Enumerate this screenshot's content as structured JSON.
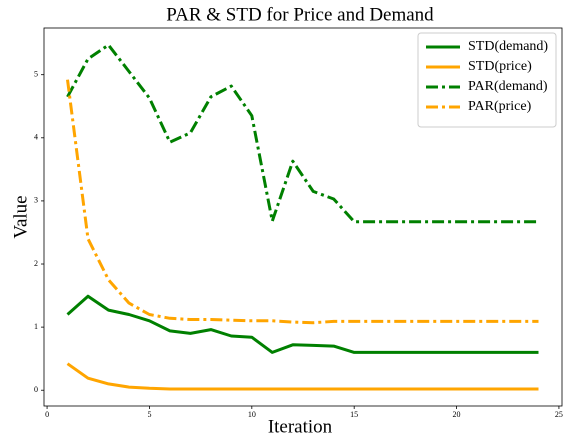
{
  "chart_data": {
    "type": "line",
    "title": "PAR & STD for Price and Demand",
    "xlabel": "Iteration",
    "ylabel": "Value",
    "x": [
      1,
      2,
      3,
      4,
      5,
      6,
      7,
      8,
      9,
      10,
      11,
      12,
      13,
      14,
      15,
      16,
      17,
      18,
      19,
      20,
      21,
      22,
      23,
      24
    ],
    "series": [
      {
        "name": "STD(demand)",
        "color": "#008000",
        "linestyle": "solid",
        "values": [
          1.2,
          1.49,
          1.27,
          1.2,
          1.1,
          0.94,
          0.9,
          0.96,
          0.86,
          0.84,
          0.6,
          0.72,
          0.71,
          0.7,
          0.6,
          0.6,
          0.6,
          0.6,
          0.6,
          0.6,
          0.6,
          0.6,
          0.6,
          0.6
        ]
      },
      {
        "name": "STD(price)",
        "color": "#ffa500",
        "linestyle": "solid",
        "values": [
          0.42,
          0.19,
          0.1,
          0.05,
          0.03,
          0.02,
          0.02,
          0.02,
          0.02,
          0.02,
          0.02,
          0.02,
          0.02,
          0.02,
          0.02,
          0.02,
          0.02,
          0.02,
          0.02,
          0.02,
          0.02,
          0.02,
          0.02,
          0.02
        ]
      },
      {
        "name": "PAR(demand)",
        "color": "#008000",
        "linestyle": "dashdot",
        "values": [
          4.65,
          5.25,
          5.47,
          5.05,
          4.63,
          3.93,
          4.08,
          4.65,
          4.82,
          4.35,
          2.68,
          3.63,
          3.15,
          3.03,
          2.67,
          2.67,
          2.67,
          2.67,
          2.67,
          2.67,
          2.67,
          2.67,
          2.67,
          2.67
        ]
      },
      {
        "name": "PAR(price)",
        "color": "#ffa500",
        "linestyle": "dashdot",
        "values": [
          4.92,
          2.4,
          1.75,
          1.38,
          1.2,
          1.14,
          1.12,
          1.12,
          1.11,
          1.1,
          1.1,
          1.08,
          1.07,
          1.09,
          1.09,
          1.09,
          1.09,
          1.09,
          1.09,
          1.09,
          1.09,
          1.09,
          1.09,
          1.09
        ]
      }
    ],
    "xlim": [
      -0.15,
      25.15
    ],
    "xticks": [
      0,
      5,
      10,
      15,
      20,
      25
    ],
    "ylim": [
      -0.25,
      5.74
    ],
    "yticks": [
      0,
      1,
      2,
      3,
      4,
      5
    ],
    "legend": "upper right"
  }
}
